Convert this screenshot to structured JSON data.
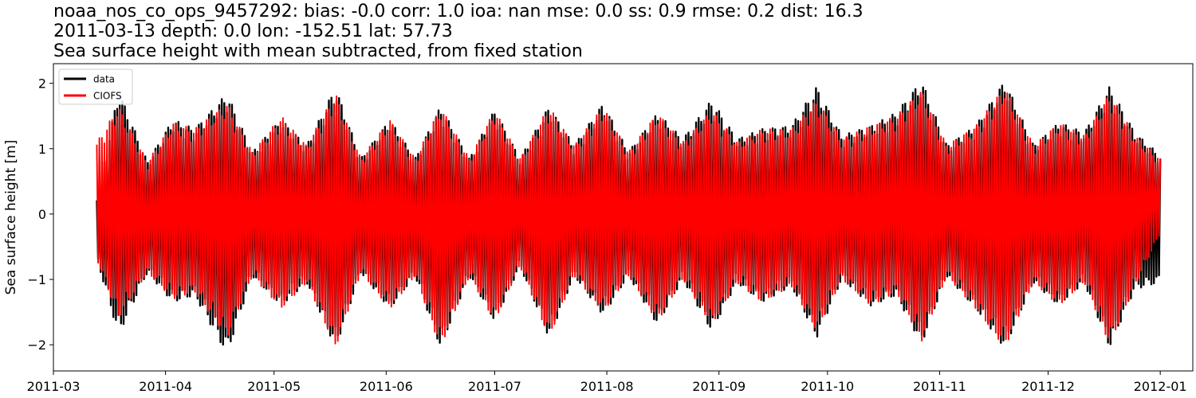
{
  "title_lines": [
    "noaa_nos_co_ops_9457292: bias: -0.0  corr: 1.0  ioa: nan  mse: 0.0  ss: 0.9  rmse: 0.2  dist: 16.3",
    "2011-03-13 depth: 0.0 lon: -152.51 lat: 57.73",
    "Sea surface height with mean subtracted, from fixed station"
  ],
  "chart_data": {
    "type": "line",
    "title": "noaa_nos_co_ops_9457292: bias: -0.0  corr: 1.0  ioa: nan  mse: 0.0  ss: 0.9  rmse: 0.2  dist: 16.3\n2011-03-13 depth: 0.0 lon: -152.51 lat: 57.73\nSea surface height with mean subtracted, from fixed station",
    "xlabel": "",
    "ylabel": "Sea surface height [m]",
    "x_range": [
      "2011-03-01",
      "2012-01-10"
    ],
    "ylim": [
      -2.4,
      2.3
    ],
    "x_ticks": [
      "2011-03",
      "2011-04",
      "2011-05",
      "2011-06",
      "2011-07",
      "2011-08",
      "2011-09",
      "2011-10",
      "2011-11",
      "2011-12",
      "2012-01"
    ],
    "y_ticks": [
      -2,
      -1,
      0,
      1,
      2
    ],
    "grid": false,
    "legend_position": "upper left",
    "data_start": "2011-03-13",
    "data_end": "2012-01-01",
    "series": [
      {
        "name": "data",
        "color": "#000000",
        "envelope": [
          {
            "date": "2011-03-13",
            "max": 0.25,
            "min": -0.7
          },
          {
            "date": "2011-03-19",
            "max": 1.9,
            "min": -1.85
          },
          {
            "date": "2011-03-27",
            "max": 0.8,
            "min": -0.9
          },
          {
            "date": "2011-04-03",
            "max": 1.45,
            "min": -1.35
          },
          {
            "date": "2011-04-09",
            "max": 1.3,
            "min": -1.25
          },
          {
            "date": "2011-04-18",
            "max": 1.85,
            "min": -2.15
          },
          {
            "date": "2011-04-25",
            "max": 0.95,
            "min": -0.95
          },
          {
            "date": "2011-05-03",
            "max": 1.45,
            "min": -1.4
          },
          {
            "date": "2011-05-10",
            "max": 1.05,
            "min": -1.05
          },
          {
            "date": "2011-05-18",
            "max": 1.95,
            "min": -2.05
          },
          {
            "date": "2011-05-25",
            "max": 0.85,
            "min": -0.9
          },
          {
            "date": "2011-06-02",
            "max": 1.45,
            "min": -1.45
          },
          {
            "date": "2011-06-09",
            "max": 0.85,
            "min": -0.95
          },
          {
            "date": "2011-06-16",
            "max": 1.65,
            "min": -2.05
          },
          {
            "date": "2011-06-24",
            "max": 0.85,
            "min": -0.95
          },
          {
            "date": "2011-07-01",
            "max": 1.6,
            "min": -1.65
          },
          {
            "date": "2011-07-08",
            "max": 0.85,
            "min": -0.8
          },
          {
            "date": "2011-07-16",
            "max": 1.65,
            "min": -1.9
          },
          {
            "date": "2011-07-23",
            "max": 1.05,
            "min": -0.95
          },
          {
            "date": "2011-07-31",
            "max": 1.7,
            "min": -1.55
          },
          {
            "date": "2011-08-07",
            "max": 0.95,
            "min": -0.95
          },
          {
            "date": "2011-08-15",
            "max": 1.55,
            "min": -1.7
          },
          {
            "date": "2011-08-22",
            "max": 1.15,
            "min": -1.0
          },
          {
            "date": "2011-08-30",
            "max": 1.75,
            "min": -1.8
          },
          {
            "date": "2011-09-06",
            "max": 1.15,
            "min": -1.05
          },
          {
            "date": "2011-09-13",
            "max": 1.3,
            "min": -1.35
          },
          {
            "date": "2011-09-21",
            "max": 1.35,
            "min": -1.1
          },
          {
            "date": "2011-09-28",
            "max": 1.95,
            "min": -1.9
          },
          {
            "date": "2011-10-05",
            "max": 1.2,
            "min": -1.0
          },
          {
            "date": "2011-10-13",
            "max": 1.35,
            "min": -1.4
          },
          {
            "date": "2011-10-20",
            "max": 1.55,
            "min": -1.25
          },
          {
            "date": "2011-10-27",
            "max": 2.05,
            "min": -2.0
          },
          {
            "date": "2011-11-03",
            "max": 1.05,
            "min": -0.95
          },
          {
            "date": "2011-11-11",
            "max": 1.35,
            "min": -1.45
          },
          {
            "date": "2011-11-19",
            "max": 2.05,
            "min": -2.05
          },
          {
            "date": "2011-11-27",
            "max": 1.05,
            "min": -1.05
          },
          {
            "date": "2011-12-04",
            "max": 1.4,
            "min": -1.4
          },
          {
            "date": "2011-12-11",
            "max": 1.25,
            "min": -1.05
          },
          {
            "date": "2011-12-18",
            "max": 1.95,
            "min": -2.05
          },
          {
            "date": "2011-12-25",
            "max": 1.25,
            "min": -1.15
          },
          {
            "date": "2012-01-01",
            "max": 0.9,
            "min": -1.05
          }
        ]
      },
      {
        "name": "CIOFS",
        "color": "#ff0000",
        "envelope": [
          {
            "date": "2011-03-13",
            "max": 1.1,
            "min": -0.7
          },
          {
            "date": "2011-03-19",
            "max": 1.65,
            "min": -1.6
          },
          {
            "date": "2011-03-27",
            "max": 0.8,
            "min": -0.9
          },
          {
            "date": "2011-04-03",
            "max": 1.4,
            "min": -1.3
          },
          {
            "date": "2011-04-09",
            "max": 1.3,
            "min": -1.2
          },
          {
            "date": "2011-04-18",
            "max": 1.7,
            "min": -1.9
          },
          {
            "date": "2011-04-25",
            "max": 0.95,
            "min": -0.95
          },
          {
            "date": "2011-05-03",
            "max": 1.5,
            "min": -1.45
          },
          {
            "date": "2011-05-10",
            "max": 1.05,
            "min": -1.05
          },
          {
            "date": "2011-05-18",
            "max": 1.85,
            "min": -2.05
          },
          {
            "date": "2011-05-25",
            "max": 0.85,
            "min": -0.9
          },
          {
            "date": "2011-06-02",
            "max": 1.45,
            "min": -1.45
          },
          {
            "date": "2011-06-09",
            "max": 0.85,
            "min": -0.95
          },
          {
            "date": "2011-06-16",
            "max": 1.65,
            "min": -2.05
          },
          {
            "date": "2011-06-24",
            "max": 0.85,
            "min": -0.95
          },
          {
            "date": "2011-07-01",
            "max": 1.6,
            "min": -1.65
          },
          {
            "date": "2011-07-08",
            "max": 0.85,
            "min": -0.8
          },
          {
            "date": "2011-07-16",
            "max": 1.65,
            "min": -1.9
          },
          {
            "date": "2011-07-23",
            "max": 1.05,
            "min": -0.95
          },
          {
            "date": "2011-07-31",
            "max": 1.65,
            "min": -1.5
          },
          {
            "date": "2011-08-07",
            "max": 0.95,
            "min": -0.95
          },
          {
            "date": "2011-08-15",
            "max": 1.55,
            "min": -1.65
          },
          {
            "date": "2011-08-22",
            "max": 1.1,
            "min": -1.0
          },
          {
            "date": "2011-08-30",
            "max": 1.6,
            "min": -1.7
          },
          {
            "date": "2011-09-06",
            "max": 1.1,
            "min": -1.05
          },
          {
            "date": "2011-09-13",
            "max": 1.3,
            "min": -1.35
          },
          {
            "date": "2011-09-21",
            "max": 1.3,
            "min": -1.1
          },
          {
            "date": "2011-09-28",
            "max": 1.75,
            "min": -1.8
          },
          {
            "date": "2011-10-05",
            "max": 1.15,
            "min": -1.0
          },
          {
            "date": "2011-10-13",
            "max": 1.35,
            "min": -1.4
          },
          {
            "date": "2011-10-20",
            "max": 1.5,
            "min": -1.2
          },
          {
            "date": "2011-10-27",
            "max": 1.9,
            "min": -1.95
          },
          {
            "date": "2011-11-03",
            "max": 1.05,
            "min": -0.95
          },
          {
            "date": "2011-11-11",
            "max": 1.35,
            "min": -1.45
          },
          {
            "date": "2011-11-19",
            "max": 1.95,
            "min": -2.05
          },
          {
            "date": "2011-11-27",
            "max": 1.05,
            "min": -1.05
          },
          {
            "date": "2011-12-04",
            "max": 1.4,
            "min": -1.4
          },
          {
            "date": "2011-12-11",
            "max": 1.2,
            "min": -1.05
          },
          {
            "date": "2011-12-18",
            "max": 1.85,
            "min": -2.0
          },
          {
            "date": "2011-12-25",
            "max": 1.2,
            "min": -1.1
          },
          {
            "date": "2012-01-01",
            "max": 0.85,
            "min": -0.3
          }
        ]
      }
    ]
  }
}
